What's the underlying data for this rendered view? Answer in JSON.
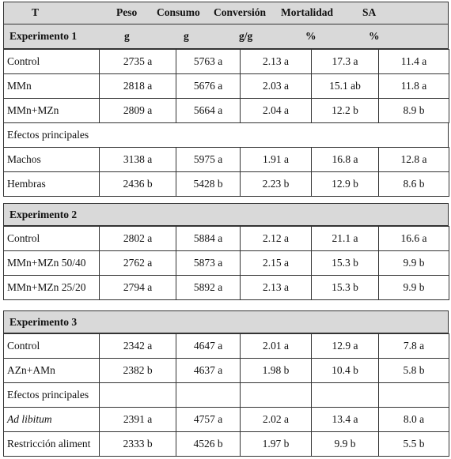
{
  "header": {
    "columns": [
      "T",
      "Peso",
      "Consumo",
      "Conversión",
      "Mortalidad",
      "SA"
    ]
  },
  "sections": [
    {
      "title": "Experimento 1",
      "units": [
        "g",
        "g",
        "g/g",
        "%",
        "%"
      ],
      "rows": [
        [
          "Control",
          "2735 a",
          "5763 a",
          "2.13 a",
          "17.3 a",
          "11.4 a"
        ],
        [
          "MMn",
          "2818 a",
          "5676 a",
          "2.03 a",
          "15.1 ab",
          "11.8 a"
        ],
        [
          "MMn+MZn",
          "2809 a",
          "5664 a",
          "2.04 a",
          "12.2 b",
          "8.9 b"
        ],
        [
          "Efectos principales"
        ],
        [
          "Machos",
          "3138 a",
          "5975 a",
          "1.91 a",
          "16.8 a",
          "12.8 a"
        ],
        [
          "Hembras",
          "2436 b",
          "5428 b",
          "2.23 b",
          "12.9 b",
          "8.6 b"
        ]
      ]
    },
    {
      "title": "Experimento 2",
      "rows": [
        [
          "Control",
          "2802 a",
          "5884 a",
          "2.12 a",
          "21.1 a",
          "16.6 a"
        ],
        [
          "MMn+MZn 50/40",
          "2762 a",
          "5873 a",
          "2.15 a",
          "15.3 b",
          "9.9 b"
        ],
        [
          "MMn+MZn 25/20",
          "2794 a",
          "5892 a",
          "2.13 a",
          "15.3 b",
          "9.9 b"
        ]
      ]
    },
    {
      "title": "Experimento 3",
      "rows": [
        [
          "Control",
          "2342 a",
          "4647 a",
          "2.01 a",
          "12.9 a",
          "7.8 a"
        ],
        [
          "AZn+AMn",
          "2382 b",
          "4637 a",
          "1.98 b",
          "10.4 b",
          "5.8 b"
        ],
        [
          "Efectos principales"
        ],
        [
          "Ad libitum",
          "2391 a",
          "4757 a",
          "2.02 a",
          "13.4 a",
          "8.0 a"
        ],
        [
          "Restricción aliment",
          "2333 b",
          "4526 b",
          "1.97 b",
          "9.9 b",
          "5.5 b"
        ]
      ]
    }
  ]
}
